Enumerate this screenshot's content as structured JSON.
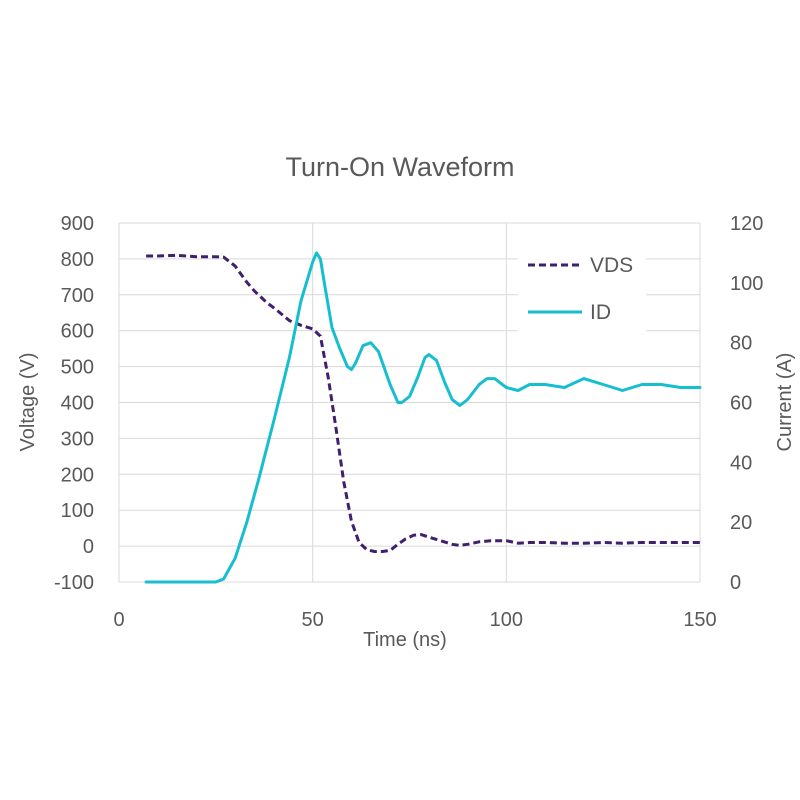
{
  "chart_data": {
    "type": "line",
    "title": "Turn-On Waveform",
    "xlabel": "Time (ns)",
    "ylabel": "Voltage (V)",
    "y2label": "Current (A)",
    "xlim": [
      0,
      150
    ],
    "ylim": [
      -100,
      900
    ],
    "y2lim": [
      0,
      120
    ],
    "xticks": [
      0,
      50,
      100,
      150
    ],
    "yticks": [
      -100,
      0,
      100,
      200,
      300,
      400,
      500,
      600,
      700,
      800,
      900
    ],
    "y2ticks": [
      0,
      20,
      40,
      60,
      80,
      100,
      120
    ],
    "grid": true,
    "legend_position": "top-right",
    "series": [
      {
        "name": "VDS",
        "axis": "left",
        "color": "#3f1f6e",
        "style": "dashed",
        "x": [
          7,
          10,
          15,
          20,
          25,
          27,
          30,
          33,
          35,
          38,
          41,
          44,
          47,
          50,
          52,
          54,
          56,
          58,
          60,
          62,
          64,
          66,
          68,
          70,
          72,
          74,
          76,
          78,
          80,
          83,
          86,
          88,
          90,
          93,
          96,
          100,
          103,
          106,
          110,
          115,
          120,
          125,
          130,
          135,
          140,
          145,
          150
        ],
        "y": [
          808,
          808,
          810,
          806,
          806,
          805,
          780,
          735,
          710,
          680,
          655,
          628,
          615,
          605,
          585,
          470,
          330,
          180,
          70,
          10,
          -10,
          -15,
          -15,
          -12,
          5,
          20,
          30,
          32,
          25,
          15,
          5,
          2,
          5,
          12,
          15,
          15,
          8,
          10,
          10,
          8,
          8,
          10,
          8,
          10,
          10,
          10,
          10
        ]
      },
      {
        "name": "ID",
        "axis": "right",
        "color": "#17becf",
        "style": "solid",
        "x": [
          7,
          15,
          20,
          25,
          27,
          30,
          33,
          36,
          40,
          44,
          47,
          50,
          51,
          52,
          53,
          55,
          57,
          59,
          60,
          61,
          63,
          65,
          67,
          70,
          72,
          73,
          75,
          77,
          79,
          80,
          82,
          84,
          86,
          88,
          90,
          93,
          95,
          97,
          100,
          103,
          106,
          110,
          115,
          120,
          125,
          130,
          135,
          140,
          145,
          150
        ],
        "y": [
          0,
          0,
          0,
          0,
          1,
          8,
          20,
          34,
          54,
          75,
          94,
          107,
          110,
          108,
          100,
          85,
          78,
          72,
          71,
          73,
          79,
          80,
          77,
          66,
          60,
          60,
          62,
          68,
          75,
          76,
          74,
          67,
          61,
          59,
          61,
          66,
          68,
          68,
          65,
          64,
          66,
          66,
          65,
          68,
          66,
          64,
          66,
          66,
          65,
          65
        ]
      }
    ]
  }
}
